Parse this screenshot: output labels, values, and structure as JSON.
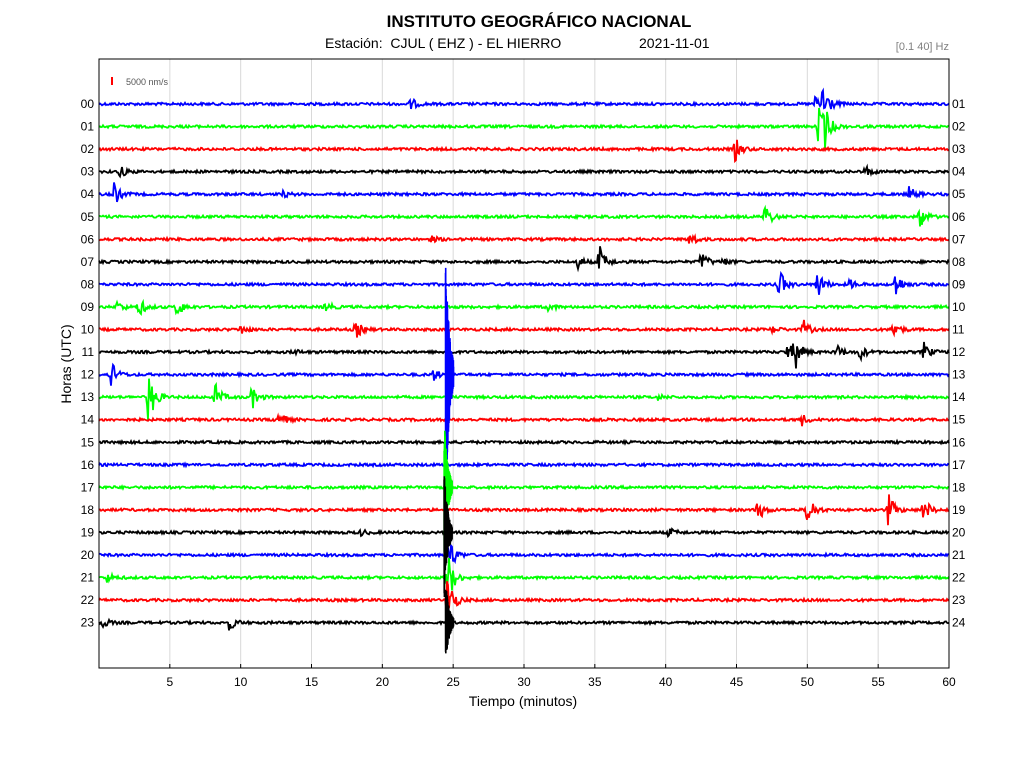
{
  "header": {
    "title": "INSTITUTO GEOGRÁFICO NACIONAL",
    "station_label": "Estación:  CJUL ( EHZ ) - EL HIERRO",
    "date": "2021-11-01",
    "filter": "[0.1 40] Hz"
  },
  "chart_data": {
    "type": "line",
    "title": "INSTITUTO GEOGRÁFICO NACIONAL",
    "xlabel": "Tiempo (minutos)",
    "ylabel": "Horas (UTC)",
    "xlim": [
      0,
      60
    ],
    "x_ticks": [
      5,
      10,
      15,
      20,
      25,
      30,
      35,
      40,
      45,
      50,
      55,
      60
    ],
    "left_hour_labels": [
      "00",
      "01",
      "02",
      "03",
      "04",
      "05",
      "06",
      "07",
      "08",
      "09",
      "10",
      "11",
      "12",
      "13",
      "14",
      "15",
      "16",
      "17",
      "18",
      "19",
      "20",
      "21",
      "22",
      "23"
    ],
    "right_hour_labels": [
      "01",
      "02",
      "03",
      "04",
      "05",
      "06",
      "07",
      "08",
      "09",
      "10",
      "11",
      "12",
      "13",
      "14",
      "15",
      "16",
      "17",
      "18",
      "19",
      "20",
      "21",
      "22",
      "23",
      "24"
    ],
    "scale_label": "5000 nm/s",
    "grid": true,
    "colors": [
      "#0000ff",
      "#00ff00",
      "#ff0000",
      "#000000"
    ],
    "traces": [
      {
        "hour": "00",
        "events": [
          {
            "t": 22.0,
            "amp": 6
          },
          {
            "t": 51.1,
            "amp": 24
          },
          {
            "t": 50.6,
            "amp": 10
          }
        ]
      },
      {
        "hour": "01",
        "events": [
          {
            "t": 50.8,
            "amp": 22
          },
          {
            "t": 51.2,
            "amp": 18
          }
        ]
      },
      {
        "hour": "02",
        "events": [
          {
            "t": 44.9,
            "amp": 12
          }
        ]
      },
      {
        "hour": "03",
        "events": [
          {
            "t": 1.5,
            "amp": 6
          },
          {
            "t": 54.1,
            "amp": 6
          }
        ]
      },
      {
        "hour": "04",
        "events": [
          {
            "t": 1.0,
            "amp": 14
          },
          {
            "t": 13.0,
            "amp": 3
          },
          {
            "t": 57.2,
            "amp": 8
          }
        ]
      },
      {
        "hour": "05",
        "events": [
          {
            "t": 47.0,
            "amp": 14
          },
          {
            "t": 57.9,
            "amp": 14
          }
        ]
      },
      {
        "hour": "06",
        "events": [
          {
            "t": 23.5,
            "amp": 3
          },
          {
            "t": 41.7,
            "amp": 8
          }
        ]
      },
      {
        "hour": "07",
        "events": [
          {
            "t": 33.8,
            "amp": 6
          },
          {
            "t": 35.3,
            "amp": 18
          },
          {
            "t": 42.5,
            "amp": 12
          },
          {
            "t": 44.0,
            "amp": 4
          }
        ]
      },
      {
        "hour": "08",
        "events": [
          {
            "t": 48.0,
            "amp": 16
          },
          {
            "t": 50.7,
            "amp": 16
          },
          {
            "t": 56.2,
            "amp": 14
          },
          {
            "t": 53.0,
            "amp": 5
          }
        ]
      },
      {
        "hour": "09",
        "events": [
          {
            "t": 1.3,
            "amp": 6
          },
          {
            "t": 2.8,
            "amp": 10
          },
          {
            "t": 5.5,
            "amp": 10
          },
          {
            "t": 16.0,
            "amp": 6
          },
          {
            "t": 31.7,
            "amp": 4
          }
        ]
      },
      {
        "hour": "10",
        "events": [
          {
            "t": 10.0,
            "amp": 5
          },
          {
            "t": 18.1,
            "amp": 10
          },
          {
            "t": 49.7,
            "amp": 10
          },
          {
            "t": 56.0,
            "amp": 12
          },
          {
            "t": 47.5,
            "amp": 4
          }
        ]
      },
      {
        "hour": "11",
        "events": [
          {
            "t": 13.7,
            "amp": 3
          },
          {
            "t": 49.1,
            "amp": 18
          },
          {
            "t": 48.6,
            "amp": 10
          },
          {
            "t": 52.0,
            "amp": 9
          },
          {
            "t": 53.7,
            "amp": 8
          },
          {
            "t": 58.2,
            "amp": 10
          }
        ]
      },
      {
        "hour": "12",
        "events": [
          {
            "t": 0.8,
            "amp": 16
          },
          {
            "t": 23.6,
            "amp": 6
          },
          {
            "t": 24.6,
            "amp": 140
          }
        ]
      },
      {
        "hour": "13",
        "events": [
          {
            "t": 3.5,
            "amp": 32
          },
          {
            "t": 8.2,
            "amp": 14
          },
          {
            "t": 10.8,
            "amp": 12
          },
          {
            "t": 39.4,
            "amp": 3
          }
        ]
      },
      {
        "hour": "14",
        "events": [
          {
            "t": 12.6,
            "amp": 12
          },
          {
            "t": 49.6,
            "amp": 6
          }
        ]
      },
      {
        "hour": "15",
        "events": []
      },
      {
        "hour": "16",
        "events": []
      },
      {
        "hour": "17",
        "events": [
          {
            "t": 24.5,
            "amp": 70
          }
        ]
      },
      {
        "hour": "18",
        "events": [
          {
            "t": 46.5,
            "amp": 12
          },
          {
            "t": 50.0,
            "amp": 20
          },
          {
            "t": 55.7,
            "amp": 18
          },
          {
            "t": 58.2,
            "amp": 14
          }
        ]
      },
      {
        "hour": "19",
        "events": [
          {
            "t": 24.5,
            "amp": 70
          },
          {
            "t": 40.2,
            "amp": 5
          },
          {
            "t": 18.5,
            "amp": 3
          }
        ]
      },
      {
        "hour": "20",
        "events": [
          {
            "t": 24.6,
            "amp": 26
          }
        ]
      },
      {
        "hour": "21",
        "events": [
          {
            "t": 24.6,
            "amp": 30
          },
          {
            "t": 0.6,
            "amp": 5
          }
        ]
      },
      {
        "hour": "22",
        "events": [
          {
            "t": 24.6,
            "amp": 30
          }
        ]
      },
      {
        "hour": "23",
        "events": [
          {
            "t": 0.3,
            "amp": 5
          },
          {
            "t": 9.2,
            "amp": 8
          },
          {
            "t": 24.6,
            "amp": 45
          }
        ]
      }
    ]
  }
}
